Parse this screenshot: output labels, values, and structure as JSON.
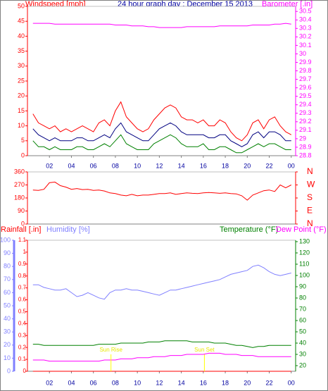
{
  "chart_data": [
    {
      "type": "line",
      "title": "24 hour graph day : December 15 2013",
      "ylabel": "Windspeed [mph]",
      "x": [
        0.5,
        1,
        1.5,
        2,
        2.5,
        3,
        3.5,
        4,
        4.5,
        5,
        5.5,
        6,
        6.5,
        7,
        7.5,
        8,
        8.5,
        9,
        9.5,
        10,
        10.5,
        11,
        11.5,
        12,
        12.5,
        13,
        13.5,
        14,
        14.5,
        15,
        15.5,
        16,
        16.5,
        17,
        17.5,
        18,
        18.5,
        19,
        19.5,
        20,
        20.5,
        21,
        21.5,
        22,
        22.5,
        23,
        23.5,
        24
      ],
      "xlim": [
        0,
        24.4
      ],
      "xticks": [
        {
          "value": 2,
          "label": "02"
        },
        {
          "value": 4,
          "label": "04"
        },
        {
          "value": 6,
          "label": "06"
        },
        {
          "value": 8,
          "label": "08"
        },
        10,
        12,
        14,
        16,
        18,
        20,
        22,
        {
          "value": 24,
          "label": "00"
        }
      ],
      "ylim": [
        0,
        50
      ],
      "yticks": [
        0,
        5,
        10,
        15,
        20,
        25,
        30,
        35,
        40,
        45,
        50
      ],
      "y2lim": [
        28.8,
        30.56
      ],
      "y2ticks": [
        28.8,
        28.9,
        29,
        29.1,
        29.2,
        29.3,
        29.4,
        29.5,
        29.6,
        29.7,
        29.8,
        29.9,
        30,
        30.1,
        30.2,
        30.3,
        30.4,
        30.5
      ],
      "series": [
        {
          "color": "#ff0000",
          "values": [
            14,
            11,
            10,
            9,
            10,
            8,
            9,
            8,
            9,
            10,
            9,
            8,
            11,
            12,
            10,
            15,
            18,
            13,
            11,
            9,
            8,
            9,
            12,
            14,
            16,
            17,
            16,
            13,
            12,
            12,
            11,
            12,
            10,
            10,
            12,
            11,
            8,
            6,
            5,
            7,
            11,
            12,
            9,
            12,
            13,
            10,
            8,
            7
          ]
        },
        {
          "color": "#008000",
          "values": [
            5,
            3,
            3,
            2,
            3,
            2,
            2,
            2,
            3,
            3,
            2,
            2,
            3,
            4,
            3,
            5,
            7,
            4,
            3,
            2,
            2,
            2,
            4,
            5,
            6,
            7,
            6,
            4,
            3,
            3,
            3,
            4,
            2,
            2,
            3,
            3,
            2,
            1,
            1,
            2,
            3,
            4,
            3,
            4,
            4,
            3,
            2,
            2
          ]
        },
        {
          "color": "#000080",
          "values": [
            9,
            7,
            6,
            5,
            6,
            5,
            5,
            5,
            6,
            6,
            5,
            5,
            6,
            7,
            6,
            9,
            11,
            8,
            7,
            6,
            5,
            5,
            7,
            9,
            10,
            11,
            10,
            8,
            7,
            7,
            7,
            7,
            6,
            6,
            7,
            7,
            5,
            4,
            3,
            4,
            7,
            8,
            6,
            8,
            8,
            7,
            5,
            5
          ]
        },
        {
          "name": "Barometer [.in]",
          "color": "#ff00ff",
          "axis": "y2",
          "values": [
            30.36,
            30.36,
            30.36,
            30.36,
            30.35,
            30.35,
            30.35,
            30.35,
            30.35,
            30.35,
            30.35,
            30.35,
            30.35,
            30.35,
            30.35,
            30.34,
            30.34,
            30.34,
            30.33,
            30.33,
            30.33,
            30.32,
            30.32,
            30.31,
            30.31,
            30.31,
            30.31,
            30.31,
            30.32,
            30.32,
            30.32,
            30.32,
            30.32,
            30.32,
            30.33,
            30.33,
            30.33,
            30.33,
            30.33,
            30.33,
            30.34,
            30.34,
            30.34,
            30.34,
            30.35,
            30.35,
            30.36,
            30.35
          ]
        }
      ]
    },
    {
      "type": "line",
      "x": [
        0.5,
        1,
        1.5,
        2,
        2.5,
        3,
        3.5,
        4,
        4.5,
        5,
        5.5,
        6,
        6.5,
        7,
        7.5,
        8,
        8.5,
        9,
        9.5,
        10,
        10.5,
        11,
        11.5,
        12,
        12.5,
        13,
        13.5,
        14,
        14.5,
        15,
        15.5,
        16,
        16.5,
        17,
        17.5,
        18,
        18.5,
        19,
        19.5,
        20,
        20.5,
        21,
        21.5,
        22,
        22.5,
        23,
        23.5,
        24
      ],
      "xlim": [
        0,
        24.4
      ],
      "ylim": [
        0,
        360
      ],
      "yticks": [
        0,
        90,
        180,
        270,
        360
      ],
      "y2lim": [
        0,
        360
      ],
      "y2ticks": [
        {
          "value": 0,
          "label": "N"
        },
        {
          "value": 90,
          "label": "E"
        },
        {
          "value": 180,
          "label": "S"
        },
        {
          "value": 270,
          "label": "W"
        },
        {
          "value": 360,
          "label": "N"
        }
      ],
      "series": [
        {
          "color": "#ff0000",
          "values": [
            235,
            232,
            240,
            285,
            290,
            265,
            255,
            240,
            245,
            238,
            240,
            232,
            235,
            228,
            215,
            210,
            200,
            195,
            205,
            195,
            200,
            200,
            205,
            210,
            210,
            215,
            205,
            210,
            215,
            212,
            210,
            215,
            218,
            215,
            212,
            215,
            210,
            208,
            195,
            165,
            200,
            215,
            230,
            235,
            225,
            270,
            250,
            270
          ]
        }
      ]
    },
    {
      "type": "line",
      "x": [
        0.5,
        1,
        1.5,
        2,
        2.5,
        3,
        3.5,
        4,
        4.5,
        5,
        5.5,
        6,
        6.5,
        7,
        7.5,
        8,
        8.5,
        9,
        9.5,
        10,
        10.5,
        11,
        11.5,
        12,
        12.5,
        13,
        13.5,
        14,
        14.5,
        15,
        15.5,
        16,
        16.5,
        17,
        17.5,
        18,
        18.5,
        19,
        19.5,
        20,
        20.5,
        21,
        21.5,
        22,
        22.5,
        23,
        23.5,
        24
      ],
      "xlim": [
        0,
        24.4
      ],
      "xticks": [
        {
          "value": 2,
          "label": "02"
        },
        {
          "value": 4,
          "label": "04"
        },
        {
          "value": 6,
          "label": "06"
        },
        {
          "value": 8,
          "label": "08"
        },
        10,
        12,
        14,
        16,
        18,
        20,
        22,
        {
          "value": 24,
          "label": "00"
        }
      ],
      "ylim": [
        0,
        100
      ],
      "yticks": [
        0,
        10,
        20,
        30,
        40,
        50,
        60,
        70,
        80,
        90,
        100
      ],
      "y2lim": [
        15,
        131.25
      ],
      "y2ticks": [
        20,
        30,
        40,
        50,
        60,
        70,
        80,
        90,
        100,
        110,
        120,
        130
      ],
      "y3lim": [
        0,
        1.1
      ],
      "y3ticks": [
        0,
        0.1,
        0.2,
        0.3,
        0.4,
        0.5,
        0.6,
        0.7,
        0.8,
        0.9,
        1,
        1.1
      ],
      "series": [
        {
          "name": "Rainfall [.in]",
          "color": "#ff0000",
          "axis": "y3",
          "values": [
            0,
            0,
            0,
            0,
            0,
            0,
            0,
            0,
            0,
            0,
            0,
            0,
            0,
            0,
            0,
            0,
            0,
            0,
            0,
            0,
            0,
            0,
            0,
            0,
            0,
            0,
            0,
            0,
            0,
            0,
            0,
            0,
            0,
            0,
            0,
            0,
            0,
            0,
            0,
            0,
            0,
            0,
            0,
            0,
            0,
            0,
            0,
            0
          ]
        },
        {
          "name": "Humidity [%]",
          "color": "#8080ff",
          "axis": "y",
          "values": [
            66,
            66,
            64,
            63,
            62,
            62,
            63,
            60,
            57,
            58,
            60,
            58,
            56,
            55,
            60,
            62,
            62,
            63,
            62,
            62,
            61,
            60,
            59,
            58,
            60,
            62,
            62,
            63,
            64,
            65,
            66,
            67,
            68,
            69,
            70,
            72,
            74,
            75,
            76,
            77,
            80,
            81,
            79,
            76,
            74,
            73,
            74,
            75
          ]
        },
        {
          "name": "Temperature (°F)",
          "color": "#008000",
          "axis": "y2",
          "values": [
            39,
            39,
            38,
            38,
            38,
            38,
            38,
            38,
            38,
            38,
            38,
            38,
            39,
            39,
            39,
            39,
            40,
            40,
            40,
            40,
            40,
            41,
            41,
            41,
            42,
            42,
            42,
            42,
            42,
            41,
            41,
            41,
            41,
            40,
            40,
            40,
            39,
            38,
            38,
            37,
            36,
            37,
            37,
            38,
            38,
            38,
            38,
            38
          ]
        },
        {
          "name": "Dew Point (°F)",
          "color": "#ff00ff",
          "axis": "y2",
          "values": [
            25,
            25,
            25,
            24,
            24,
            24,
            24,
            24,
            24,
            24,
            24,
            24,
            24,
            25,
            25,
            25,
            26,
            26,
            26,
            27,
            27,
            27,
            28,
            28,
            28,
            29,
            29,
            29,
            30,
            30,
            30,
            30,
            31,
            31,
            31,
            30,
            30,
            30,
            29,
            29,
            29,
            28,
            28,
            28,
            28,
            28,
            28,
            28
          ]
        }
      ],
      "annotations": [
        {
          "text": "Sun Rise",
          "x": 7.6
        },
        {
          "text": "Sun Set",
          "x": 16.1
        }
      ]
    }
  ]
}
